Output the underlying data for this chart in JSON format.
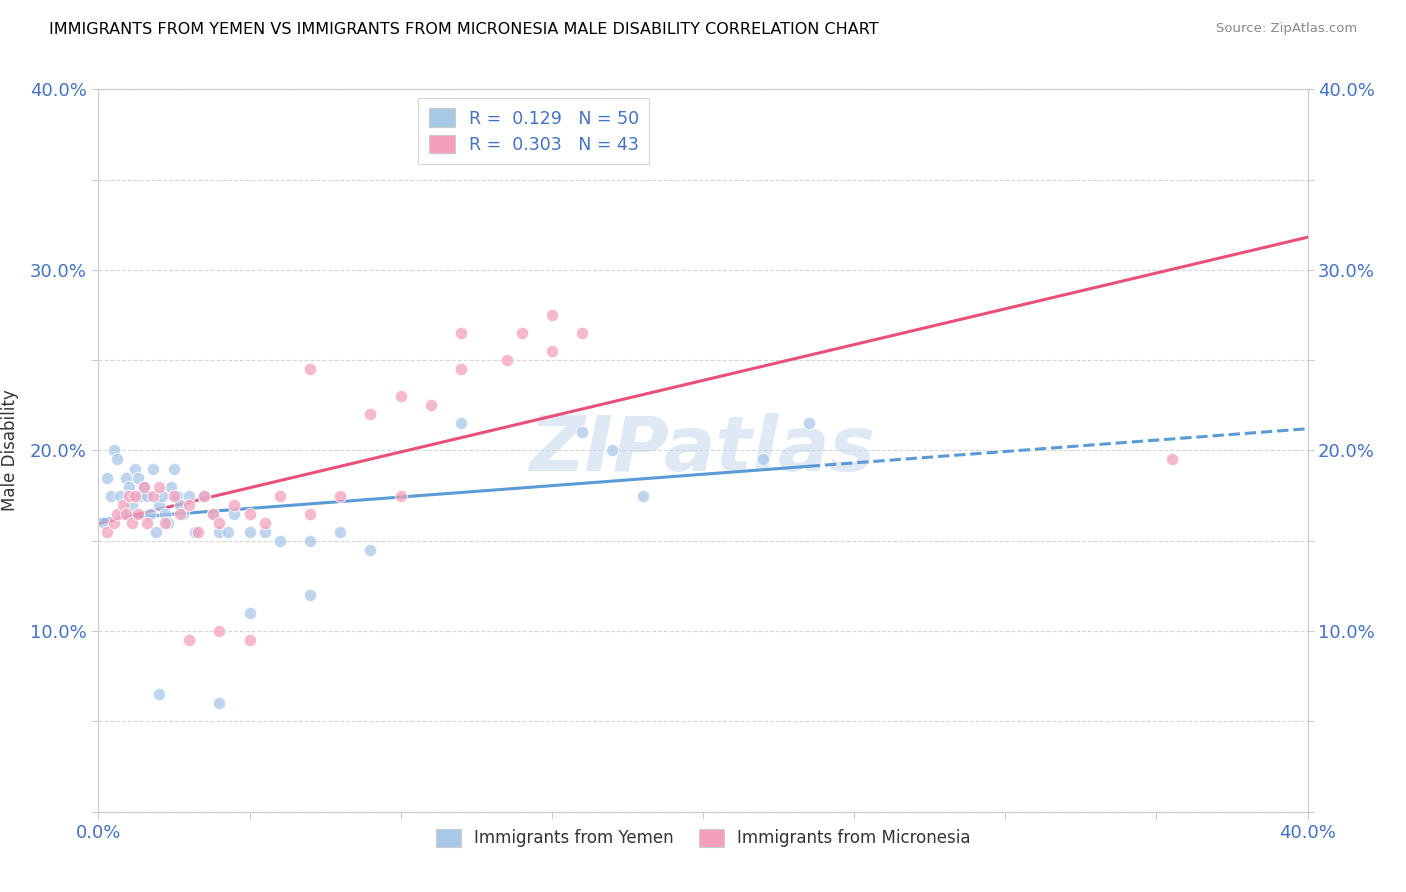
{
  "title": "IMMIGRANTS FROM YEMEN VS IMMIGRANTS FROM MICRONESIA MALE DISABILITY CORRELATION CHART",
  "source": "Source: ZipAtlas.com",
  "ylabel": "Male Disability",
  "xlim": [
    0.0,
    0.4
  ],
  "ylim": [
    0.0,
    0.4
  ],
  "color_yemen": "#A8C8E8",
  "color_micronesia": "#F4A0BC",
  "line_color_yemen": "#5B9BD5",
  "line_color_micronesia": "#E8507A",
  "R_yemen": 0.129,
  "N_yemen": 50,
  "R_micronesia": 0.303,
  "N_micronesia": 43,
  "yemen_x": [
    0.002,
    0.003,
    0.004,
    0.005,
    0.006,
    0.007,
    0.008,
    0.009,
    0.01,
    0.011,
    0.012,
    0.013,
    0.014,
    0.015,
    0.016,
    0.017,
    0.018,
    0.019,
    0.02,
    0.021,
    0.022,
    0.023,
    0.024,
    0.025,
    0.026,
    0.027,
    0.028,
    0.03,
    0.032,
    0.035,
    0.038,
    0.04,
    0.043,
    0.045,
    0.05,
    0.055,
    0.06,
    0.07,
    0.08,
    0.09,
    0.05,
    0.07,
    0.12,
    0.16,
    0.17,
    0.18,
    0.22,
    0.235,
    0.04,
    0.02
  ],
  "yemen_y": [
    0.16,
    0.185,
    0.175,
    0.2,
    0.195,
    0.175,
    0.165,
    0.185,
    0.18,
    0.17,
    0.19,
    0.185,
    0.175,
    0.18,
    0.175,
    0.165,
    0.19,
    0.155,
    0.17,
    0.175,
    0.165,
    0.16,
    0.18,
    0.19,
    0.175,
    0.17,
    0.165,
    0.175,
    0.155,
    0.175,
    0.165,
    0.155,
    0.155,
    0.165,
    0.155,
    0.155,
    0.15,
    0.15,
    0.155,
    0.145,
    0.11,
    0.12,
    0.215,
    0.21,
    0.2,
    0.175,
    0.195,
    0.215,
    0.06,
    0.065
  ],
  "micronesia_x": [
    0.003,
    0.005,
    0.006,
    0.008,
    0.009,
    0.01,
    0.011,
    0.012,
    0.013,
    0.015,
    0.016,
    0.018,
    0.02,
    0.022,
    0.025,
    0.027,
    0.03,
    0.033,
    0.035,
    0.038,
    0.04,
    0.045,
    0.05,
    0.055,
    0.06,
    0.07,
    0.08,
    0.1,
    0.12,
    0.15,
    0.07,
    0.09,
    0.1,
    0.11,
    0.12,
    0.135,
    0.14,
    0.15,
    0.16,
    0.355,
    0.03,
    0.04,
    0.05
  ],
  "micronesia_y": [
    0.155,
    0.16,
    0.165,
    0.17,
    0.165,
    0.175,
    0.16,
    0.175,
    0.165,
    0.18,
    0.16,
    0.175,
    0.18,
    0.16,
    0.175,
    0.165,
    0.17,
    0.155,
    0.175,
    0.165,
    0.16,
    0.17,
    0.165,
    0.16,
    0.175,
    0.165,
    0.175,
    0.175,
    0.245,
    0.275,
    0.245,
    0.22,
    0.23,
    0.225,
    0.265,
    0.25,
    0.265,
    0.255,
    0.265,
    0.195,
    0.095,
    0.1,
    0.095
  ],
  "legend_labels_top": [
    "R =  0.129   N = 50",
    "R =  0.303   N = 43"
  ],
  "legend_labels_bottom": [
    "Immigrants from Yemen",
    "Immigrants from Micronesia"
  ]
}
